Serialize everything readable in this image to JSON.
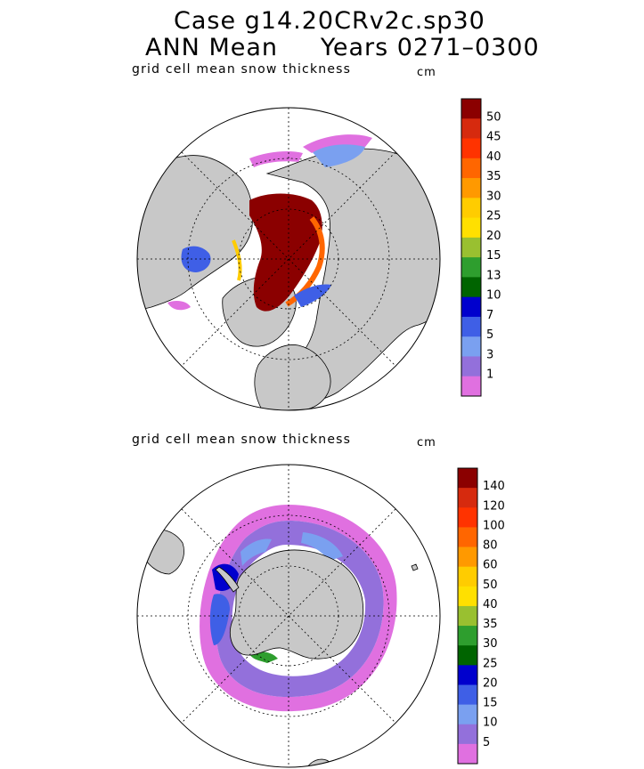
{
  "header": {
    "line1": "Case g14.20CRv2c.sp30",
    "line2": "ANN Mean     Years 0271–0300"
  },
  "panels": [
    {
      "subtitle": "grid cell mean snow thickness",
      "unit": "cm",
      "hemisphere": "Northern",
      "colorbar": {
        "labels": [
          "50",
          "45",
          "40",
          "35",
          "30",
          "25",
          "20",
          "15",
          "13",
          "10",
          "7",
          "5",
          "3",
          "1"
        ],
        "colors": [
          "#8b0000",
          "#d62a0e",
          "#ff3300",
          "#ff6600",
          "#ff9900",
          "#ffcc00",
          "#ffe000",
          "#99c030",
          "#2e9e2e",
          "#006400",
          "#0000cd",
          "#3f5fe6",
          "#7aa0f0",
          "#9370db",
          "#e070e0"
        ]
      }
    },
    {
      "subtitle": "grid cell mean snow thickness",
      "unit": "cm",
      "hemisphere": "Southern",
      "colorbar": {
        "labels": [
          "140",
          "120",
          "100",
          "80",
          "60",
          "50",
          "40",
          "35",
          "30",
          "25",
          "20",
          "15",
          "10",
          "5"
        ],
        "colors": [
          "#8b0000",
          "#d62a0e",
          "#ff3300",
          "#ff6600",
          "#ff9900",
          "#ffcc00",
          "#ffe000",
          "#99c030",
          "#2e9e2e",
          "#006400",
          "#0000cd",
          "#3f5fe6",
          "#7aa0f0",
          "#9370db",
          "#e070e0"
        ]
      }
    }
  ]
}
